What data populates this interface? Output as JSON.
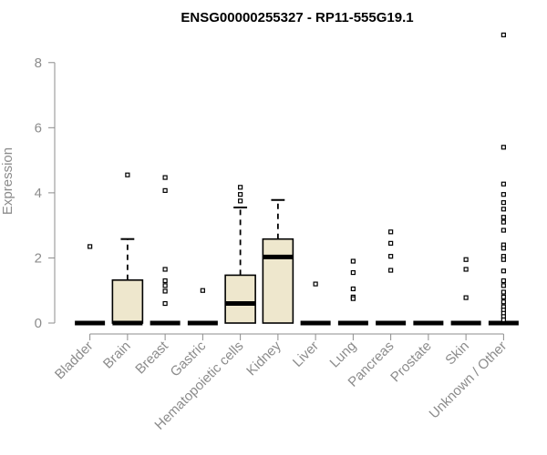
{
  "chart_data": {
    "type": "boxplot",
    "title": "ENSG00000255327 - RP11-555G19.1",
    "xlabel": "",
    "ylabel": "Expression",
    "ylim": [
      0,
      9
    ],
    "yticks": [
      0,
      2,
      4,
      6,
      8
    ],
    "grid": false,
    "legend": "none",
    "colors": {
      "box_fill": "#EEE7CD",
      "stroke": "#000000",
      "axis": "#8C8C8C",
      "title": "#000000"
    },
    "categories": [
      "Bladder",
      "Brain",
      "Breast",
      "Gastric",
      "Hematopoietic cells",
      "Kidney",
      "Liver",
      "Lung",
      "Pancreas",
      "Prostate",
      "Skin",
      "Unknown / Other"
    ],
    "boxes": [
      {
        "category": "Bladder",
        "whisker_low": 0,
        "q1": 0,
        "median": 0,
        "q3": 0,
        "whisker_high": 0,
        "outliers": [
          2.35
        ]
      },
      {
        "category": "Brain",
        "whisker_low": 0,
        "q1": 0,
        "median": 0,
        "q3": 1.32,
        "whisker_high": 2.58,
        "outliers": [
          4.55
        ]
      },
      {
        "category": "Breast",
        "whisker_low": 0,
        "q1": 0,
        "median": 0,
        "q3": 0,
        "whisker_high": 0,
        "outliers": [
          4.47,
          4.07,
          1.65,
          1.3,
          1.15,
          0.98,
          0.6
        ]
      },
      {
        "category": "Gastric",
        "whisker_low": 0,
        "q1": 0,
        "median": 0,
        "q3": 0,
        "whisker_high": 0,
        "outliers": [
          1.0
        ]
      },
      {
        "category": "Hematopoietic cells",
        "whisker_low": 0,
        "q1": 0,
        "median": 0.6,
        "q3": 1.47,
        "whisker_high": 3.55,
        "outliers": [
          4.17,
          3.95,
          3.75
        ]
      },
      {
        "category": "Kidney",
        "whisker_low": 0,
        "q1": 0,
        "median": 2.03,
        "q3": 2.58,
        "whisker_high": 3.78,
        "outliers": []
      },
      {
        "category": "Liver",
        "whisker_low": 0,
        "q1": 0,
        "median": 0,
        "q3": 0,
        "whisker_high": 0,
        "outliers": [
          1.2
        ]
      },
      {
        "category": "Lung",
        "whisker_low": 0,
        "q1": 0,
        "median": 0,
        "q3": 0,
        "whisker_high": 0,
        "outliers": [
          1.9,
          1.55,
          1.05,
          0.8,
          0.75
        ]
      },
      {
        "category": "Pancreas",
        "whisker_low": 0,
        "q1": 0,
        "median": 0,
        "q3": 0,
        "whisker_high": 0,
        "outliers": [
          2.8,
          2.45,
          2.05,
          1.62
        ]
      },
      {
        "category": "Prostate",
        "whisker_low": 0,
        "q1": 0,
        "median": 0,
        "q3": 0,
        "whisker_high": 0,
        "outliers": []
      },
      {
        "category": "Skin",
        "whisker_low": 0,
        "q1": 0,
        "median": 0,
        "q3": 0,
        "whisker_high": 0,
        "outliers": [
          1.95,
          1.65,
          0.78
        ]
      },
      {
        "category": "Unknown / Other",
        "whisker_low": 0,
        "q1": 0,
        "median": 0,
        "q3": 0,
        "whisker_high": 0,
        "outliers": [
          8.85,
          5.4,
          4.27,
          3.95,
          3.7,
          3.5,
          3.25,
          3.1,
          2.85,
          2.4,
          2.3,
          2.05,
          1.95,
          1.6,
          1.3,
          1.15,
          0.95,
          0.8,
          0.65,
          0.5,
          0.4,
          0.3,
          0.2,
          0.1
        ]
      }
    ]
  }
}
